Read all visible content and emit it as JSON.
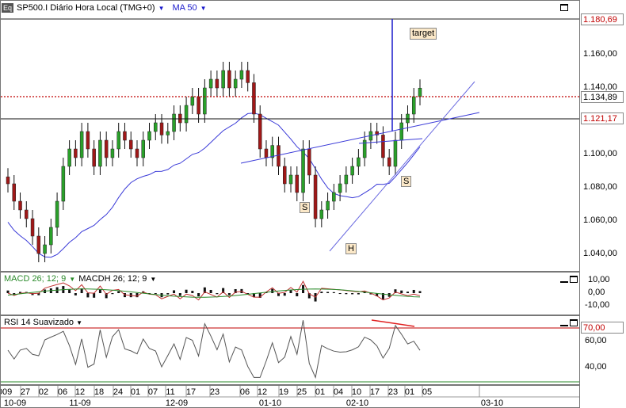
{
  "header": {
    "icon": "eq-icon",
    "icon_text": "Eq",
    "title": "SP500.I Diário Hora Local (TMG+0)",
    "ma_label": "MA 50"
  },
  "price_panel": {
    "annotation_target": "target",
    "pattern_labels": [
      "S",
      "H",
      "S"
    ],
    "price_markers": [
      {
        "value": "1.180,69",
        "color": "#c00000"
      },
      {
        "value": "1.134,89",
        "color": "#c00000"
      },
      {
        "value": "1.121,17",
        "color": "#000000"
      }
    ],
    "y_ticks": [
      "1.160,00",
      "1.140,00",
      "1.120,00",
      "1.100,00",
      "1.080,00",
      "1.060,00",
      "1.040,00"
    ]
  },
  "macd_panel": {
    "label_macd": "MACD 26; 12; 9",
    "label_macdh": "MACDH 26; 12; 9",
    "y_ticks": [
      "10,00",
      "0,00",
      "-10,00"
    ]
  },
  "rsi_panel": {
    "label": "RSI 14 Suavizado",
    "level_marker": "70,00",
    "y_ticks": [
      "60,00",
      "40,00"
    ]
  },
  "x_axis": {
    "day_ticks": [
      "009",
      "27",
      "02",
      "06",
      "12",
      "18",
      "24",
      "01",
      "07",
      "11",
      "17",
      "23",
      "06",
      "12",
      "19",
      "25",
      "01",
      "04",
      "10",
      "17",
      "23",
      "01",
      "05",
      "03-10"
    ],
    "month_ticks": [
      "10-09",
      "11-09",
      "12-09",
      "01-10",
      "02-10",
      "03-10"
    ]
  },
  "chart_data": {
    "type": "line",
    "title": "SP500.I Diário Hora Local (TMG+0)",
    "series": [
      {
        "name": "SP500.I",
        "kind": "candlestick",
        "close": [
          1080,
          1070,
          1065,
          1060,
          1050,
          1040,
          1045,
          1055,
          1070,
          1090,
          1100,
          1095,
          1110,
          1100,
          1090,
          1105,
          1095,
          1100,
          1110,
          1105,
          1100,
          1095,
          1105,
          1110,
          1115,
          1108,
          1110,
          1120,
          1115,
          1125,
          1130,
          1120,
          1135,
          1140,
          1135,
          1145,
          1135,
          1140,
          1145,
          1138,
          1120,
          1100,
          1095,
          1102,
          1090,
          1080,
          1085,
          1075,
          1100,
          1085,
          1060,
          1065,
          1070,
          1075,
          1080,
          1085,
          1090,
          1095,
          1105,
          1110,
          1108,
          1095,
          1090,
          1105,
          1115,
          1120,
          1130,
          1134.89
        ]
      },
      {
        "name": "MA 50",
        "kind": "line"
      }
    ],
    "ylim": [
      1030,
      1185
    ],
    "last_close": 1134.89,
    "horizontal_levels": [
      1180.69,
      1134.89,
      1121.17
    ],
    "macd": {
      "name": "MACD 26; 12; 9",
      "ylim": [
        -15,
        15
      ]
    },
    "rsi": {
      "name": "RSI 14 Suavizado",
      "level": 70,
      "ylim": [
        25,
        75
      ]
    },
    "grid": false
  }
}
